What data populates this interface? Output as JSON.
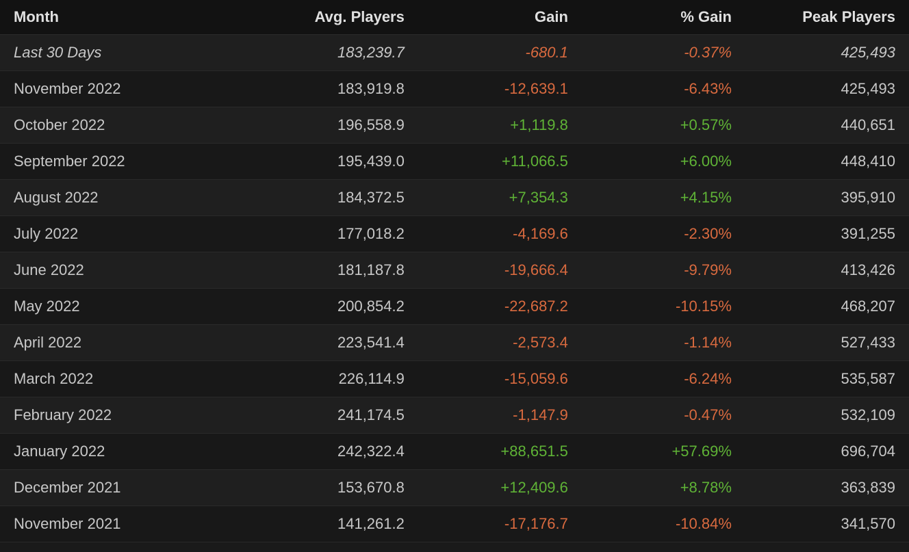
{
  "table": {
    "headers": {
      "month": "Month",
      "avg": "Avg. Players",
      "gain": "Gain",
      "pct": "% Gain",
      "peak": "Peak Players"
    },
    "colors": {
      "header_bg": "#121212",
      "row_odd_bg": "#1f1f1f",
      "row_even_bg": "#181818",
      "text": "#c8c8c8",
      "header_text": "#e0e0e0",
      "gain_positive": "#5fb336",
      "gain_negative": "#d96a3f",
      "border": "#2a2a2a"
    },
    "font_size": 22,
    "rows": [
      {
        "month": "Last 30 Days",
        "avg": "183,239.7",
        "gain": "-680.1",
        "pct": "-0.37%",
        "peak": "425,493",
        "sign": "neg",
        "italic": true
      },
      {
        "month": "November 2022",
        "avg": "183,919.8",
        "gain": "-12,639.1",
        "pct": "-6.43%",
        "peak": "425,493",
        "sign": "neg",
        "italic": false
      },
      {
        "month": "October 2022",
        "avg": "196,558.9",
        "gain": "+1,119.8",
        "pct": "+0.57%",
        "peak": "440,651",
        "sign": "pos",
        "italic": false
      },
      {
        "month": "September 2022",
        "avg": "195,439.0",
        "gain": "+11,066.5",
        "pct": "+6.00%",
        "peak": "448,410",
        "sign": "pos",
        "italic": false
      },
      {
        "month": "August 2022",
        "avg": "184,372.5",
        "gain": "+7,354.3",
        "pct": "+4.15%",
        "peak": "395,910",
        "sign": "pos",
        "italic": false
      },
      {
        "month": "July 2022",
        "avg": "177,018.2",
        "gain": "-4,169.6",
        "pct": "-2.30%",
        "peak": "391,255",
        "sign": "neg",
        "italic": false
      },
      {
        "month": "June 2022",
        "avg": "181,187.8",
        "gain": "-19,666.4",
        "pct": "-9.79%",
        "peak": "413,426",
        "sign": "neg",
        "italic": false
      },
      {
        "month": "May 2022",
        "avg": "200,854.2",
        "gain": "-22,687.2",
        "pct": "-10.15%",
        "peak": "468,207",
        "sign": "neg",
        "italic": false
      },
      {
        "month": "April 2022",
        "avg": "223,541.4",
        "gain": "-2,573.4",
        "pct": "-1.14%",
        "peak": "527,433",
        "sign": "neg",
        "italic": false
      },
      {
        "month": "March 2022",
        "avg": "226,114.9",
        "gain": "-15,059.6",
        "pct": "-6.24%",
        "peak": "535,587",
        "sign": "neg",
        "italic": false
      },
      {
        "month": "February 2022",
        "avg": "241,174.5",
        "gain": "-1,147.9",
        "pct": "-0.47%",
        "peak": "532,109",
        "sign": "neg",
        "italic": false
      },
      {
        "month": "January 2022",
        "avg": "242,322.4",
        "gain": "+88,651.5",
        "pct": "+57.69%",
        "peak": "696,704",
        "sign": "pos",
        "italic": false
      },
      {
        "month": "December 2021",
        "avg": "153,670.8",
        "gain": "+12,409.6",
        "pct": "+8.78%",
        "peak": "363,839",
        "sign": "pos",
        "italic": false
      },
      {
        "month": "November 2021",
        "avg": "141,261.2",
        "gain": "-17,176.7",
        "pct": "-10.84%",
        "peak": "341,570",
        "sign": "neg",
        "italic": false
      }
    ]
  }
}
